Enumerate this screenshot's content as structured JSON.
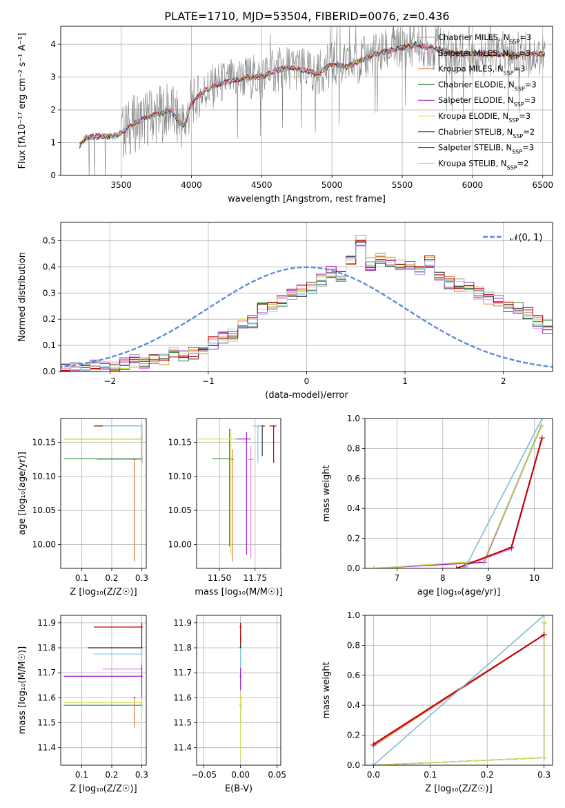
{
  "figure": {
    "title": "PLATE=1710, MJD=53504, FIBERID=0076, z=0.436"
  },
  "series_styles": [
    {
      "name": "Chabrier MILES",
      "nssp": "3",
      "color": "#9e9e9e"
    },
    {
      "name": "Salpeter MILES",
      "nssp": "3",
      "color": "#ee82ee"
    },
    {
      "name": "Kroupa MILES",
      "nssp": "3",
      "color": "#e07b39"
    },
    {
      "name": "Chabrier ELODIE",
      "nssp": "3",
      "color": "#3c8c3c"
    },
    {
      "name": "Salpeter ELODIE",
      "nssp": "3",
      "color": "#a020c8"
    },
    {
      "name": "Kroupa ELODIE",
      "nssp": "3",
      "color": "#d4e157"
    },
    {
      "name": "Chabrier STELIB",
      "nssp": "2",
      "color": "#333333"
    },
    {
      "name": "Salpeter STELIB",
      "nssp": "3",
      "color": "#c00000"
    },
    {
      "name": "Kroupa STELIB",
      "nssp": "2",
      "color": "#87ceeb"
    }
  ],
  "chart_data": [
    {
      "id": "spectrum",
      "type": "line",
      "xlabel": "wavelength [Angstrom, rest frame]",
      "ylabel": "Flux [fλ10⁻¹⁷ erg cm⁻² s⁻¹ A⁻¹]",
      "xlim": [
        3070,
        6570
      ],
      "ylim": [
        0,
        4.55
      ],
      "xticks": [
        3500,
        4000,
        4500,
        5000,
        5500,
        6000,
        6500
      ],
      "yticks": [
        0,
        1,
        2,
        3,
        4
      ],
      "legend": "top-right",
      "data_color": "#808080",
      "model_shape": {
        "x": [
          3200,
          3250,
          3350,
          3450,
          3500,
          3600,
          3700,
          3800,
          3850,
          3900,
          3950,
          4000,
          4100,
          4200,
          4300,
          4400,
          4500,
          4600,
          4700,
          4800,
          4900,
          5000,
          5100,
          5200,
          5300,
          5400,
          5500,
          5600,
          5700,
          5800,
          5900,
          6000,
          6100,
          6200,
          6300,
          6400,
          6500
        ],
        "y": [
          0.9,
          1.15,
          1.2,
          1.2,
          1.3,
          1.6,
          1.8,
          1.9,
          2.0,
          1.7,
          1.5,
          2.2,
          2.6,
          2.8,
          2.9,
          3.0,
          3.0,
          3.2,
          3.3,
          3.2,
          3.1,
          3.4,
          3.3,
          3.5,
          3.7,
          3.8,
          3.9,
          4.0,
          3.9,
          3.8,
          3.7,
          3.7,
          3.7,
          3.7,
          3.7,
          3.7,
          3.7
        ]
      }
    },
    {
      "id": "residuals",
      "type": "histogram",
      "xlabel": "(data-model)/error",
      "ylabel": "Normed distribution",
      "xlim": [
        -2.5,
        2.5
      ],
      "ylim": [
        0,
        0.57
      ],
      "xticks": [
        -2,
        -1,
        0,
        1,
        2
      ],
      "yticks": [
        0.0,
        0.1,
        0.2,
        0.3,
        0.4,
        0.5
      ],
      "legend": "top-right",
      "reference_label": "𝒩(0, 1)",
      "reference_color": "#5b8bd9",
      "bin_edges_start": -2.5,
      "bin_width": 0.1,
      "hist": [
        0.01,
        0.01,
        0.01,
        0.02,
        0.02,
        0.02,
        0.03,
        0.04,
        0.03,
        0.05,
        0.05,
        0.07,
        0.06,
        0.07,
        0.08,
        0.11,
        0.13,
        0.14,
        0.18,
        0.19,
        0.24,
        0.25,
        0.27,
        0.29,
        0.31,
        0.32,
        0.35,
        0.38,
        0.36,
        0.42,
        0.5,
        0.41,
        0.43,
        0.42,
        0.41,
        0.4,
        0.38,
        0.42,
        0.36,
        0.34,
        0.33,
        0.32,
        0.3,
        0.28,
        0.27,
        0.25,
        0.24,
        0.22,
        0.19,
        0.17,
        0.15,
        0.14,
        0.13,
        0.11,
        0.1,
        0.09,
        0.07,
        0.06,
        0.05,
        0.04,
        0.04,
        0.03,
        0.03,
        0.03,
        0.02,
        0.02,
        0.02,
        0.02,
        0.02,
        0.02
      ]
    },
    {
      "id": "age-vs-z",
      "type": "scatter",
      "xlabel": "Z [log₁₀(Z/Z☉)]",
      "ylabel": "age  [log₁₀(age/yr)]",
      "xlim": [
        0.03,
        0.315
      ],
      "ylim": [
        9.965,
        10.185
      ],
      "xticks": [
        0.1,
        0.2,
        0.3
      ],
      "yticks": [
        10.0,
        10.05,
        10.1,
        10.15
      ],
      "points": [
        {
          "s": 0,
          "x": 0.3,
          "y": 10.174,
          "xerr": [
            0.17,
            0.3
          ],
          "yerr": [
            10.12,
            10.174
          ]
        },
        {
          "s": 1,
          "x": 0.3,
          "y": 10.125,
          "xerr": [
            0.15,
            0.3
          ],
          "yerr": [
            10.12,
            10.13
          ]
        },
        {
          "s": 2,
          "x": 0.275,
          "y": 10.125,
          "xerr": [
            0.27,
            0.28
          ],
          "yerr": [
            9.975,
            10.125
          ]
        },
        {
          "s": 3,
          "x": 0.3,
          "y": 10.126,
          "xerr": [
            0.04,
            0.3
          ],
          "yerr": [
            10.12,
            10.13
          ]
        },
        {
          "s": 4,
          "x": 0.3,
          "y": 10.155,
          "xerr": [
            0.04,
            0.3
          ],
          "yerr": [
            10.15,
            10.16
          ]
        },
        {
          "s": 5,
          "x": 0.3,
          "y": 10.155,
          "xerr": [
            0.04,
            0.3
          ],
          "yerr": [
            10.0,
            10.155
          ]
        },
        {
          "s": 6,
          "x": 0.3,
          "y": 10.174,
          "xerr": [
            0.14,
            0.3
          ],
          "yerr": [
            10.12,
            10.174
          ]
        },
        {
          "s": 7,
          "x": 0.3,
          "y": 10.174,
          "xerr": [
            0.15,
            0.3
          ],
          "yerr": [
            10.12,
            10.174
          ]
        },
        {
          "s": 8,
          "x": 0.3,
          "y": 10.174,
          "xerr": [
            0.17,
            0.3
          ],
          "yerr": [
            10.12,
            10.174
          ]
        }
      ]
    },
    {
      "id": "age-vs-mass",
      "type": "scatter",
      "xlabel": "mass [log₁₀(M/M☉)]",
      "ylabel": "",
      "xlim": [
        11.34,
        11.93
      ],
      "ylim": [
        9.965,
        10.185
      ],
      "xticks": [
        11.5,
        11.75
      ],
      "yticks": [
        10.0,
        10.05,
        10.1,
        10.15
      ],
      "points": [
        {
          "s": 0,
          "x": 11.77,
          "y": 10.174,
          "xerr": [
            11.75,
            11.8
          ],
          "yerr": [
            10.12,
            10.174
          ]
        },
        {
          "s": 1,
          "x": 11.72,
          "y": 10.125,
          "xerr": [
            11.7,
            11.74
          ],
          "yerr": [
            9.98,
            10.145
          ]
        },
        {
          "s": 2,
          "x": 11.59,
          "y": 10.125,
          "xerr": [
            11.58,
            11.6
          ],
          "yerr": [
            9.975,
            10.14
          ]
        },
        {
          "s": 3,
          "x": 11.57,
          "y": 10.126,
          "xerr": [
            11.45,
            11.57
          ],
          "yerr": [
            9.997,
            10.17
          ]
        },
        {
          "s": 4,
          "x": 11.69,
          "y": 10.155,
          "xerr": [
            11.6,
            11.72
          ],
          "yerr": [
            9.985,
            10.165
          ]
        },
        {
          "s": 5,
          "x": 11.58,
          "y": 10.155,
          "xerr": [
            11.35,
            11.62
          ],
          "yerr": [
            9.985,
            10.17
          ]
        },
        {
          "s": 6,
          "x": 11.8,
          "y": 10.174,
          "xerr": [
            11.77,
            11.82
          ],
          "yerr": [
            10.13,
            10.174
          ]
        },
        {
          "s": 7,
          "x": 11.88,
          "y": 10.174,
          "xerr": [
            11.85,
            11.9
          ],
          "yerr": [
            10.12,
            10.174
          ]
        },
        {
          "s": 8,
          "x": 11.77,
          "y": 10.174,
          "xerr": [
            11.73,
            11.8
          ],
          "yerr": [
            10.12,
            10.174
          ]
        }
      ]
    },
    {
      "id": "cumul-age",
      "type": "line",
      "xlabel": "age  [log₁₀(age/yr)]",
      "ylabel": "mass weight",
      "xlim": [
        6.3,
        10.4
      ],
      "ylim": [
        0,
        1
      ],
      "xticks": [
        7,
        8,
        9,
        10
      ],
      "yticks": [
        0.0,
        0.2,
        0.4,
        0.6,
        0.8,
        1.0
      ],
      "series": [
        {
          "s": 0,
          "x": [
            8.4,
            8.5,
            10.17
          ],
          "y": [
            0,
            0.01,
            1.0
          ]
        },
        {
          "s": 1,
          "x": [
            8.3,
            9.5,
            10.17
          ],
          "y": [
            0,
            0.13,
            0.87
          ]
        },
        {
          "s": 2,
          "x": [
            8.3,
            9.5,
            10.17
          ],
          "y": [
            0,
            0.14,
            0.87
          ]
        },
        {
          "s": 3,
          "x": [
            6.5,
            8.9,
            10.15
          ],
          "y": [
            0,
            0.05,
            0.95
          ]
        },
        {
          "s": 4,
          "x": [
            6.5,
            8.9,
            10.16
          ],
          "y": [
            0,
            0.04,
            0.95
          ]
        },
        {
          "s": 5,
          "x": [
            6.5,
            8.9,
            10.16
          ],
          "y": [
            0,
            0.05,
            0.95
          ]
        },
        {
          "s": 6,
          "x": [
            8.4,
            8.5,
            10.17
          ],
          "y": [
            0,
            0.01,
            1.0
          ]
        },
        {
          "s": 7,
          "x": [
            8.3,
            9.5,
            10.17
          ],
          "y": [
            0,
            0.14,
            0.87
          ]
        },
        {
          "s": 8,
          "x": [
            8.4,
            8.5,
            10.17
          ],
          "y": [
            0,
            0.01,
            1.0
          ]
        }
      ]
    },
    {
      "id": "mass-vs-z",
      "type": "scatter",
      "xlabel": "Z [log₁₀(Z/Z☉)]",
      "ylabel": "mass [log₁₀(M/M☉)]",
      "xlim": [
        0.03,
        0.315
      ],
      "ylim": [
        11.33,
        11.93
      ],
      "xticks": [
        0.1,
        0.2,
        0.3
      ],
      "yticks": [
        11.4,
        11.5,
        11.6,
        11.7,
        11.8,
        11.9
      ],
      "points": [
        {
          "s": 0,
          "x": 0.3,
          "y": 11.8,
          "xerr": [
            0.12,
            0.3
          ],
          "yerr": [
            11.75,
            11.85
          ]
        },
        {
          "s": 1,
          "x": 0.3,
          "y": 11.715,
          "xerr": [
            0.17,
            0.3
          ],
          "yerr": [
            11.68,
            11.75
          ]
        },
        {
          "s": 2,
          "x": 0.275,
          "y": 11.6,
          "xerr": [
            0.27,
            0.28
          ],
          "yerr": [
            11.48,
            11.6
          ]
        },
        {
          "s": 3,
          "x": 0.3,
          "y": 11.57,
          "xerr": [
            0.04,
            0.3
          ],
          "yerr": [
            11.55,
            11.6
          ]
        },
        {
          "s": 4,
          "x": 0.3,
          "y": 11.686,
          "xerr": [
            0.04,
            0.3
          ],
          "yerr": [
            11.6,
            11.75
          ]
        },
        {
          "s": 5,
          "x": 0.3,
          "y": 11.58,
          "xerr": [
            0.04,
            0.3
          ],
          "yerr": [
            11.35,
            11.6
          ]
        },
        {
          "s": 6,
          "x": 0.3,
          "y": 11.8,
          "xerr": [
            0.12,
            0.3
          ],
          "yerr": [
            11.78,
            11.85
          ]
        },
        {
          "s": 7,
          "x": 0.3,
          "y": 11.883,
          "xerr": [
            0.14,
            0.3
          ],
          "yerr": [
            11.85,
            11.9
          ]
        },
        {
          "s": 8,
          "x": 0.3,
          "y": 11.775,
          "xerr": [
            0.14,
            0.3
          ],
          "yerr": [
            11.73,
            11.8
          ]
        }
      ]
    },
    {
      "id": "mass-vs-ebv",
      "type": "scatter",
      "xlabel": "E(B-V)",
      "ylabel": "",
      "xlim": [
        -0.06,
        0.055
      ],
      "ylim": [
        11.33,
        11.93
      ],
      "xticks": [
        -0.05,
        0.0,
        0.05
      ],
      "xticklabels": [
        "−0.05",
        "0.00",
        "0.05"
      ],
      "yticks": [
        11.4,
        11.5,
        11.6,
        11.7,
        11.8,
        11.9
      ],
      "points": [
        {
          "s": 0,
          "x": 0.0,
          "y": 11.8,
          "xerr": [
            0,
            0
          ],
          "yerr": [
            11.75,
            11.85
          ]
        },
        {
          "s": 1,
          "x": 0.0,
          "y": 11.715,
          "xerr": [
            0,
            0
          ],
          "yerr": [
            11.68,
            11.75
          ]
        },
        {
          "s": 2,
          "x": 0.0,
          "y": 11.6,
          "xerr": [
            0,
            0
          ],
          "yerr": [
            11.55,
            11.62
          ]
        },
        {
          "s": 3,
          "x": 0.0,
          "y": 11.57,
          "xerr": [
            0,
            0
          ],
          "yerr": [
            11.5,
            11.6
          ]
        },
        {
          "s": 4,
          "x": 0.0,
          "y": 11.686,
          "xerr": [
            0,
            0
          ],
          "yerr": [
            11.63,
            11.75
          ]
        },
        {
          "s": 5,
          "x": 0.0,
          "y": 11.58,
          "xerr": [
            0,
            0
          ],
          "yerr": [
            11.36,
            11.62
          ]
        },
        {
          "s": 6,
          "x": 0.0,
          "y": 11.8,
          "xerr": [
            0,
            0
          ],
          "yerr": [
            11.75,
            11.85
          ]
        },
        {
          "s": 7,
          "x": 0.0,
          "y": 11.883,
          "xerr": [
            0,
            0
          ],
          "yerr": [
            11.82,
            11.9
          ]
        },
        {
          "s": 8,
          "x": 0.0,
          "y": 11.775,
          "xerr": [
            0,
            0
          ],
          "yerr": [
            11.72,
            11.8
          ]
        }
      ]
    },
    {
      "id": "cumul-z",
      "type": "line",
      "xlabel": "Z [log₁₀(Z/Z☉)]",
      "ylabel": "mass weight",
      "xlim": [
        -0.015,
        0.315
      ],
      "ylim": [
        0,
        1
      ],
      "xticks": [
        0.0,
        0.1,
        0.2,
        0.3
      ],
      "yticks": [
        0.0,
        0.2,
        0.4,
        0.6,
        0.8,
        1.0
      ],
      "series": [
        {
          "s": 0,
          "x": [
            0.0,
            0.3
          ],
          "y": [
            0.0,
            1.0
          ]
        },
        {
          "s": 1,
          "x": [
            0.0,
            0.3,
            0.3
          ],
          "y": [
            0.13,
            0.87,
            0.87
          ]
        },
        {
          "s": 2,
          "x": [
            0.0,
            0.3,
            0.3
          ],
          "y": [
            0.13,
            0.87,
            0.87
          ]
        },
        {
          "s": 3,
          "x": [
            0.0,
            0.3,
            0.3
          ],
          "y": [
            0.0,
            0.05,
            0.95
          ]
        },
        {
          "s": 4,
          "x": [
            0.0,
            0.3,
            0.3
          ],
          "y": [
            0.0,
            0.05,
            0.95
          ]
        },
        {
          "s": 5,
          "x": [
            0.0,
            0.3,
            0.3
          ],
          "y": [
            0.0,
            0.05,
            0.95
          ]
        },
        {
          "s": 6,
          "x": [
            0.0,
            0.3
          ],
          "y": [
            0.0,
            1.0
          ]
        },
        {
          "s": 7,
          "x": [
            0.0,
            0.3,
            0.3
          ],
          "y": [
            0.14,
            0.87,
            0.87
          ]
        },
        {
          "s": 8,
          "x": [
            0.0,
            0.3
          ],
          "y": [
            0.0,
            1.0
          ]
        }
      ]
    }
  ]
}
